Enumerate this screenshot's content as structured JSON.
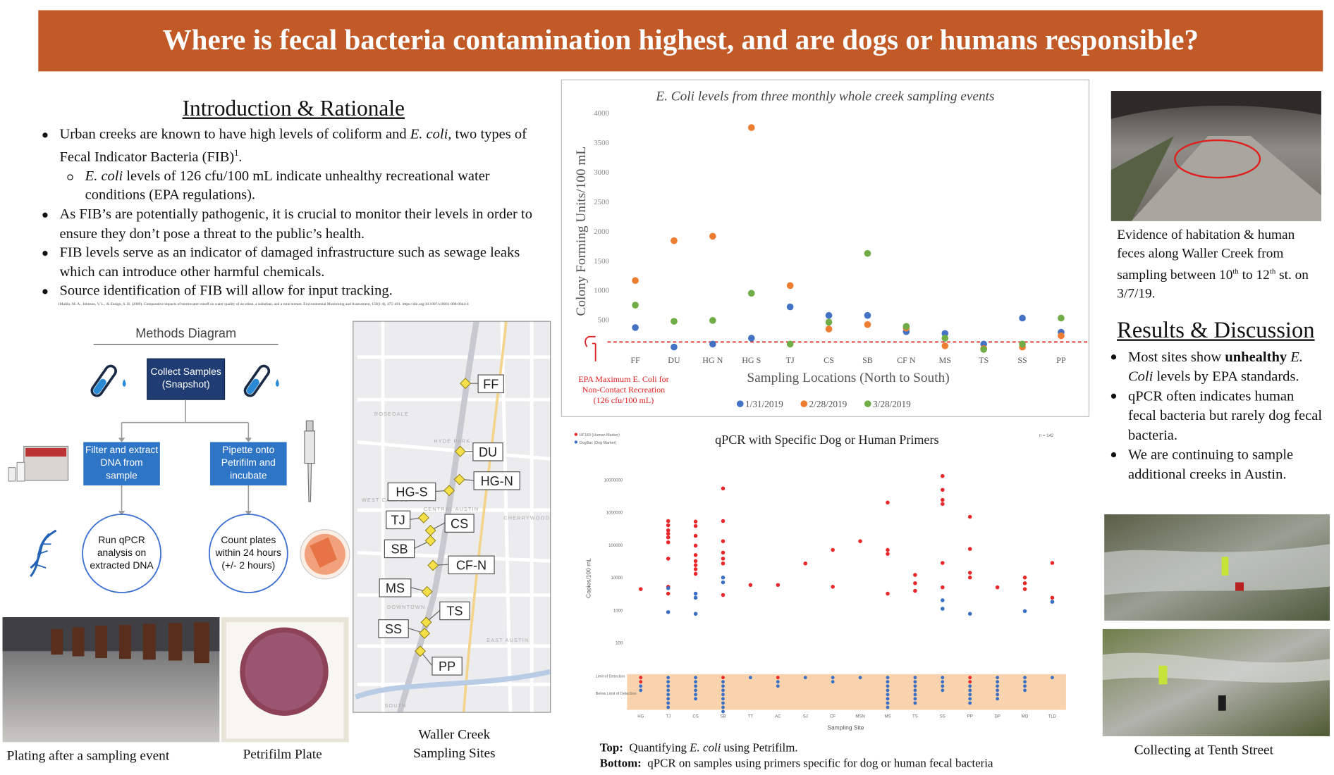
{
  "header": {
    "title": "Where is fecal bacteria contamination highest, and are dogs or humans responsible?"
  },
  "introduction": {
    "title": "Introduction & Rationale",
    "bullets": [
      [
        "Urban creeks are known to have high levels of coliform and ",
        "E. coli,",
        " two types of Fecal Indicator Bacteria (FIB)",
        "1",
        "."
      ],
      [
        "E. coli",
        " levels of 126 cfu/100 mL indicate unhealthy recreational water conditions (EPA regulations)."
      ],
      "As FIB’s are potentially pathogenic, it is crucial to monitor their levels in order to ensure they don’t pose a threat to the public’s health.",
      "FIB levels serve as an indicator of damaged infrastructure such as sewage leaks which can introduce other harmful chemicals.",
      "Source identification of FIB will allow for input tracking."
    ],
    "reference": "1Mallin, M. A., Johnson, V. L., & Ensign, S. H. (2009). Comparative impacts of stormwater runoff on water quality of an urban, a suburban, and a rural stream. Environmental Monitoring and Assessment, 159(1-4), 475–491. https://doi.org/10.1007/s10661-008-0644-4"
  },
  "methods": {
    "title": "Methods Diagram",
    "collect": "Collect Samples (Snapshot)",
    "filter": "Filter and extract DNA from sample",
    "pipette": "Pipette onto Petrifilm and incubate",
    "qpcr": "Run qPCR analysis on extracted DNA",
    "count": "Count plates within 24 hours (+/- 2 hours)"
  },
  "photos": {
    "plating": "Plating after a sampling event",
    "petrifilm": "Petrifilm Plate"
  },
  "map": {
    "sites": [
      "FF",
      "DU",
      "HG-N",
      "HG-S",
      "TJ",
      "CS",
      "SB",
      "CF-N",
      "MS",
      "TS",
      "SS",
      "PP"
    ],
    "areas": [
      "ROSEDALE",
      "HYDE PARK",
      "WEST CAMPUS",
      "CENTRAL AUSTIN",
      "CHERRYWOOD",
      "DOWNTOWN",
      "EAST AUSTIN",
      "SOUTH"
    ],
    "caption": "Waller Creek Sampling Sites"
  },
  "chart_data": [
    {
      "type": "scatter",
      "title": "E. Coli levels from three monthly whole creek sampling events",
      "x_label": "Sampling Locations (North to South)",
      "y_label": "Colony Forming Units/100 mL",
      "categories": [
        "FF",
        "DU",
        "HG N",
        "HG S",
        "TJ",
        "CS",
        "SB",
        "CF N",
        "MS",
        "TS",
        "SS",
        "PP"
      ],
      "ylim": [
        0,
        4000
      ],
      "yticks": [
        500,
        1000,
        1500,
        2000,
        2500,
        3000,
        3500,
        4000
      ],
      "series": [
        {
          "name": "1/31/2019",
          "color": "#4472c4",
          "values": [
            370,
            40,
            90,
            190,
            720,
            575,
            575,
            300,
            270,
            90,
            530,
            290
          ]
        },
        {
          "name": "2/28/2019",
          "color": "#ed7d31",
          "values": [
            1165,
            1840,
            1915,
            3755,
            1080,
            345,
            420,
            360,
            60,
            15,
            40,
            230
          ]
        },
        {
          "name": "3/28/2019",
          "color": "#70ad47",
          "values": [
            750,
            475,
            490,
            950,
            90,
            460,
            1625,
            390,
            190,
            0,
            90,
            530
          ]
        }
      ],
      "reference_line": {
        "value": 126,
        "color": "#e02020",
        "label": [
          "EPA Maximum E. Coli for",
          "Non-Contact Recreation",
          "(126 cfu/100 mL)"
        ]
      }
    },
    {
      "type": "strip",
      "title": "qPCR with Specific Dog or Human Primers",
      "note": "n = 142",
      "x_label": "Sampling Site",
      "y_label": "Copies/100 mL",
      "log_scale": true,
      "categories": [
        "HG",
        "TJ",
        "CS",
        "SB",
        "TT",
        "AC",
        "SJ",
        "CF",
        "MSN",
        "MS",
        "TS",
        "SS",
        "PP",
        "DP",
        "MO",
        "TLD"
      ],
      "ylim": [
        100,
        30000000
      ],
      "yticks": [
        100,
        1000,
        10000,
        100000,
        1000000,
        10000000
      ],
      "band_labels": [
        "Limit of Detection",
        "Below Limit of Detection"
      ],
      "series": [
        {
          "name": "HF183 (Human Marker)",
          "color": "#e8282b",
          "values": [
            [
              4400
            ],
            [
              540000,
              400000,
              280000,
              220000,
              170000,
              120000,
              38000,
              5200,
              3200
            ],
            [
              520000,
              380000,
              190000,
              95000,
              49000,
              32000,
              24000,
              18000,
              13000
            ],
            [
              5400000,
              540000,
              130000,
              58000,
              38000,
              27000,
              2900
            ],
            [
              5900
            ],
            [
              5900
            ],
            [
              27000
            ],
            [
              70000,
              5200
            ],
            [
              130000
            ],
            [
              2000000,
              70000,
              53000,
              3200
            ],
            [
              12000,
              6700,
              3900
            ],
            [
              13000000,
              4900000,
              2400000,
              1800000,
              28000,
              5000
            ],
            [
              730000,
              75000,
              14000,
              10000
            ],
            [
              5000
            ],
            [
              10000,
              6700,
              4400
            ],
            [
              28000,
              2400
            ]
          ],
          "below_detection": [
            2,
            0,
            0,
            1,
            0,
            1,
            0,
            0,
            0,
            0,
            0,
            0,
            2,
            0,
            0,
            0
          ]
        },
        {
          "name": "DogBac (Dog Marker)",
          "color": "#3a6fc4",
          "values": [
            [],
            [
              4700,
              870
            ],
            [
              3200,
              2400,
              770
            ],
            [
              10000,
              7100
            ],
            [],
            [],
            [],
            [],
            [],
            [],
            [],
            [
              2000,
              1100
            ],
            [
              770
            ],
            [],
            [
              930
            ],
            [
              1800
            ]
          ],
          "below_detection": [
            2,
            8,
            6,
            8,
            1,
            2,
            1,
            2,
            1,
            8,
            7,
            4,
            5,
            6,
            4,
            1
          ]
        }
      ]
    }
  ],
  "figure_caption": {
    "top_label": "Top:",
    "top_text": [
      "Quantifying ",
      "E. coli",
      " using Petrifilm."
    ],
    "bottom_label": "Bottom:",
    "bottom_text": "qPCR on samples using primers specific for dog or human fecal bacteria"
  },
  "right": {
    "photo_caption": [
      "Evidence of habitation & human feces along Waller Creek from sampling between 10",
      "th",
      " to 12",
      "th",
      " st. on 3/7/19."
    ],
    "results_title": "Results & Discussion",
    "results": [
      [
        "Most  sites show ",
        "unhealthy",
        " ",
        "E. Coli",
        " levels by EPA standards."
      ],
      "qPCR often indicates human fecal bacteria but rarely dog fecal bacteria.",
      "We are continuing to sample additional creeks in Austin."
    ],
    "bottom_caption": "Collecting at Tenth Street"
  }
}
